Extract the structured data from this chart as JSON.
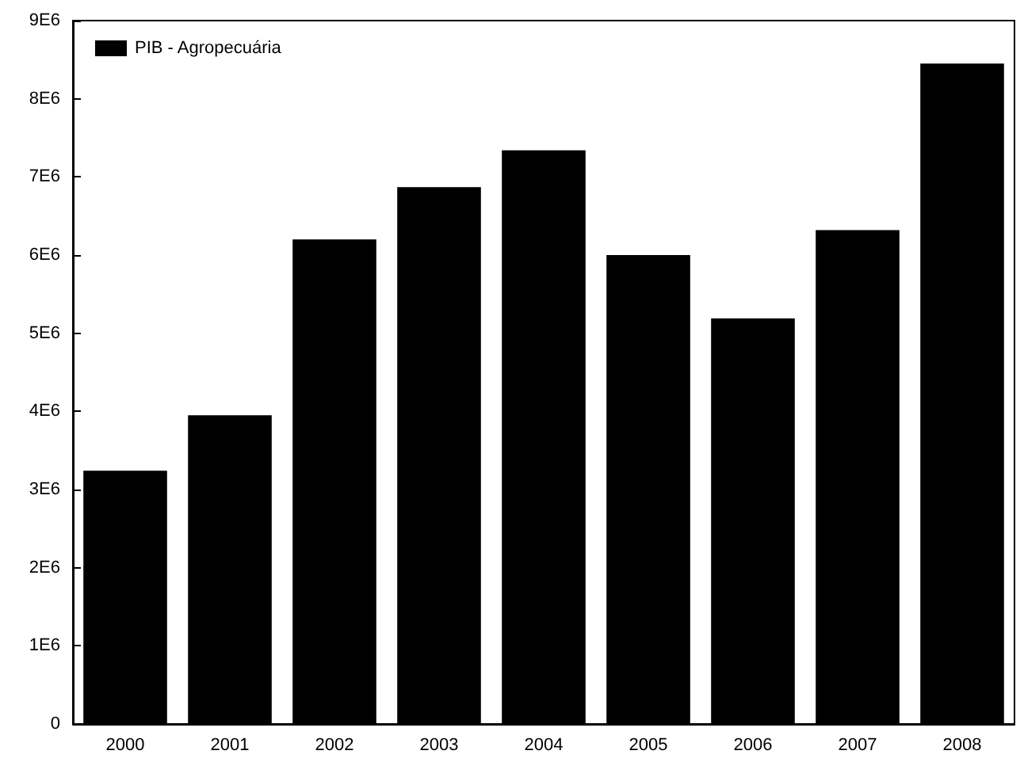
{
  "chart_data": {
    "type": "bar",
    "categories": [
      "2000",
      "2001",
      "2002",
      "2003",
      "2004",
      "2005",
      "2006",
      "2007",
      "2008"
    ],
    "series": [
      {
        "name": "PIB - Agropecuária",
        "color": "#000000",
        "values": [
          3240000,
          3950000,
          6200000,
          6870000,
          7340000,
          6000000,
          5190000,
          6320000,
          8450000
        ]
      }
    ],
    "ylim": [
      0,
      9000000
    ],
    "yticks": [
      0,
      {
        "value": 1000000,
        "label": "1E6"
      },
      {
        "value": 2000000,
        "label": "2E6"
      },
      {
        "value": 3000000,
        "label": "3E6"
      },
      {
        "value": 4000000,
        "label": "4E6"
      },
      {
        "value": 5000000,
        "label": "5E6"
      },
      {
        "value": 6000000,
        "label": "6E6"
      },
      {
        "value": 7000000,
        "label": "7E6"
      },
      {
        "value": 8000000,
        "label": "8E6"
      },
      {
        "value": 9000000,
        "label": "9E6"
      }
    ],
    "grid": false,
    "legend": "top left"
  }
}
